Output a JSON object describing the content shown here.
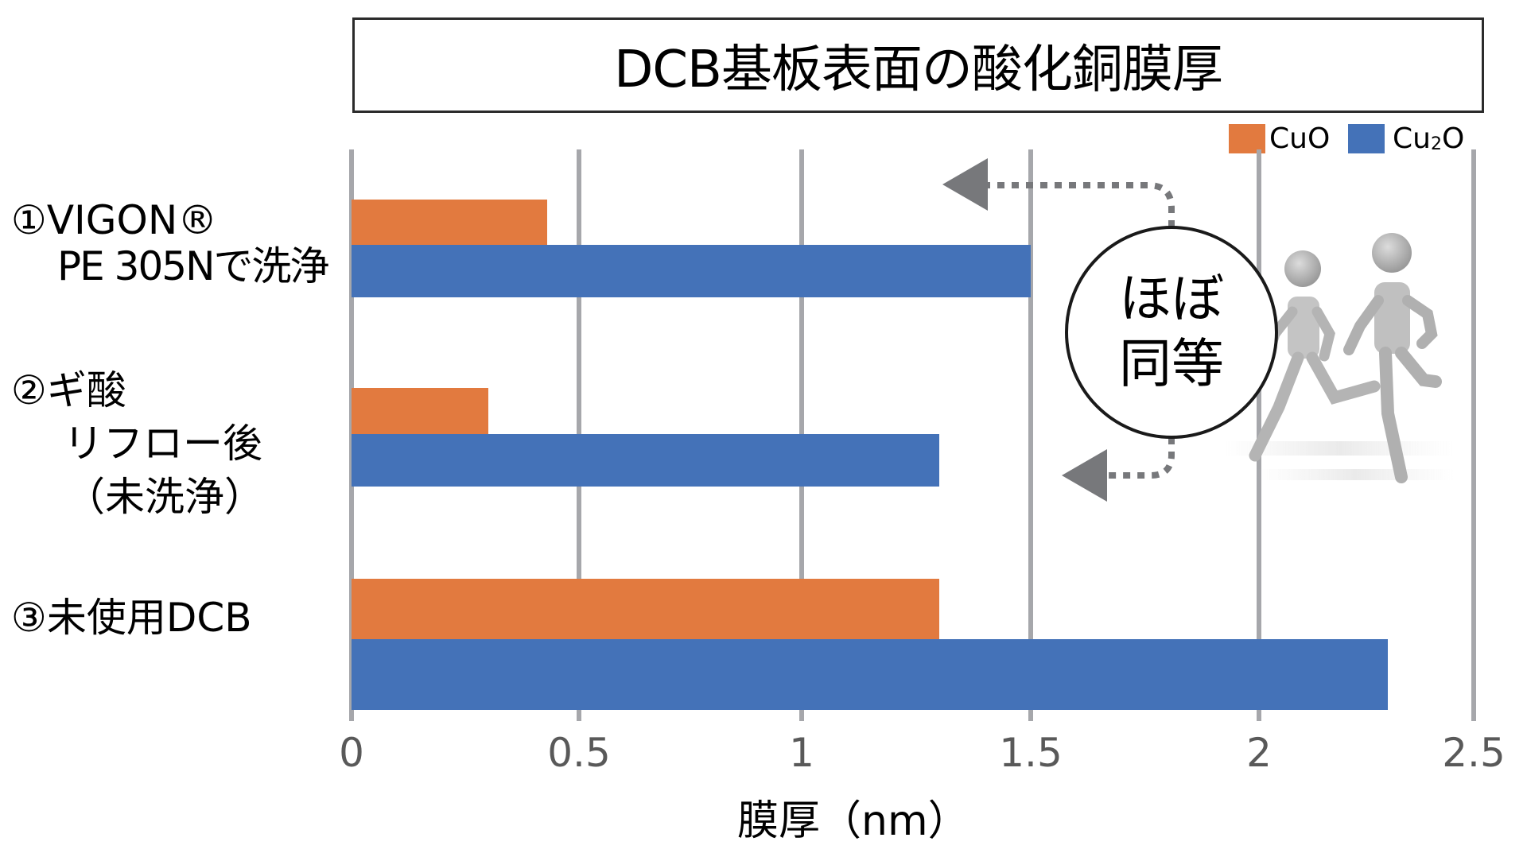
{
  "chart_data": {
    "type": "bar",
    "orientation": "horizontal",
    "title": "DCB基板表面の酸化銅膜厚",
    "xlabel": "膜厚（nm）",
    "ylabel": "",
    "xlim": [
      0,
      2.5
    ],
    "xticks": [
      "0",
      "0.5",
      "1",
      "1.5",
      "2",
      "2.5"
    ],
    "grid": "vertical",
    "legend_position": "top-right",
    "categories": [
      "①VIGON® PE 305Nで洗浄",
      "②ギ酸リフロー後（未洗浄）",
      "③未使用DCB"
    ],
    "series": [
      {
        "name": "CuO",
        "color": "#e27a3f",
        "values": [
          0.43,
          0.3,
          1.3
        ]
      },
      {
        "name": "Cu2O",
        "color": "#4472b8",
        "values": [
          1.5,
          1.3,
          2.3
        ]
      }
    ],
    "annotations": [
      {
        "text": "ほぼ同等",
        "type": "circle-callout",
        "points_to": [
          "①VIGON® PE 305Nで洗浄",
          "②ギ酸リフロー後（未洗浄）"
        ]
      }
    ]
  },
  "title": "DCB基板表面の酸化銅膜厚",
  "legend": [
    {
      "label": "CuO",
      "color": "#e27a3f"
    },
    {
      "label_main": "Cu",
      "label_sub": "2",
      "label_end": "O",
      "color": "#4472b8"
    }
  ],
  "categories": [
    {
      "lines": [
        "①VIGON®",
        "PE 305Nで洗浄"
      ]
    },
    {
      "lines": [
        "②ギ酸",
        "リフロー後",
        "（未洗浄）"
      ]
    },
    {
      "lines": [
        "③未使用DCB"
      ]
    }
  ],
  "x_axis": {
    "label": "膜厚（nm）",
    "ticks": [
      "0",
      "0.5",
      "1",
      "1.5",
      "2",
      "2.5"
    ]
  },
  "callout": {
    "line1": "ほぼ",
    "line2": "同等"
  },
  "colors": {
    "cuo": "#e27a3f",
    "cu2o": "#4472b8",
    "grid": "#a6a7ab",
    "arrow": "#77787b",
    "tick_text": "#595959"
  }
}
